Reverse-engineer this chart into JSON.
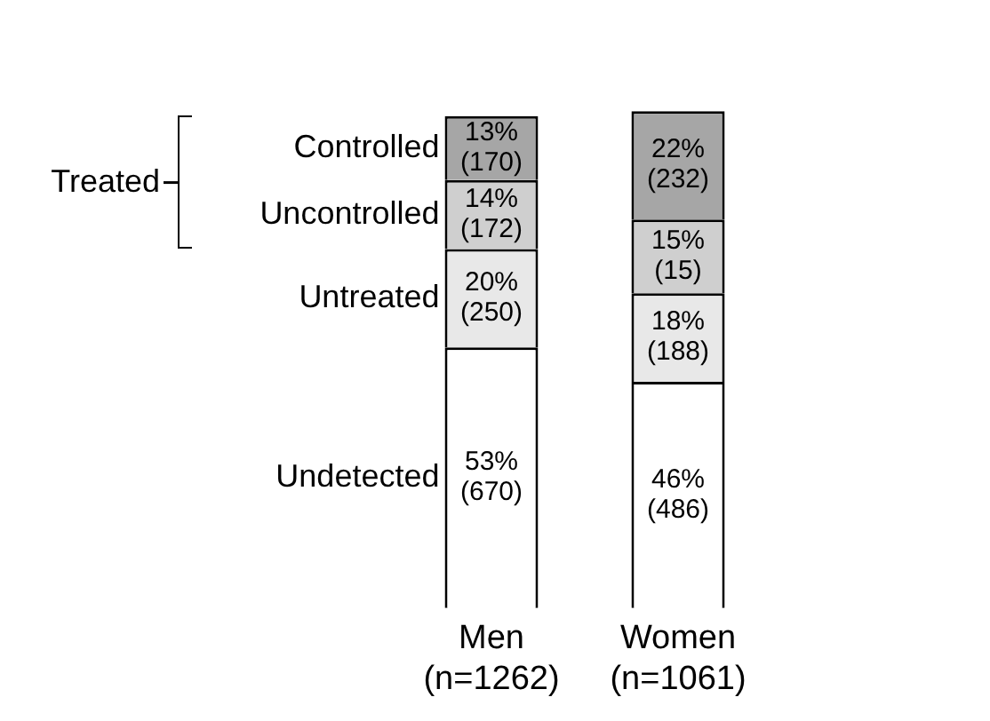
{
  "chart_data": {
    "type": "bar",
    "stacked": true,
    "categories": [
      "Men\n(n=1262)",
      "Women\n(n=1061)"
    ],
    "series": [
      {
        "name": "Undetected",
        "color": "#ffffff",
        "values": [
          53,
          46
        ],
        "value_labels": [
          "53%\n(670)",
          "46%\n(486)"
        ]
      },
      {
        "name": "Untreated",
        "color": "#e8e8e8",
        "values": [
          20,
          18
        ],
        "value_labels": [
          "20%\n(250)",
          "18%\n(188)"
        ]
      },
      {
        "name": "Uncontrolled",
        "color": "#cfcfcf",
        "values": [
          14,
          15
        ],
        "value_labels": [
          "14%\n(172)",
          "15%\n(15)"
        ]
      },
      {
        "name": "Controlled",
        "color": "#a6a6a6",
        "values": [
          13,
          22
        ],
        "value_labels": [
          "13%\n(170)",
          "22%\n(232)"
        ]
      }
    ],
    "annotations": [
      "Treated"
    ],
    "grid": false,
    "legend": false,
    "tick_labels": "x"
  }
}
